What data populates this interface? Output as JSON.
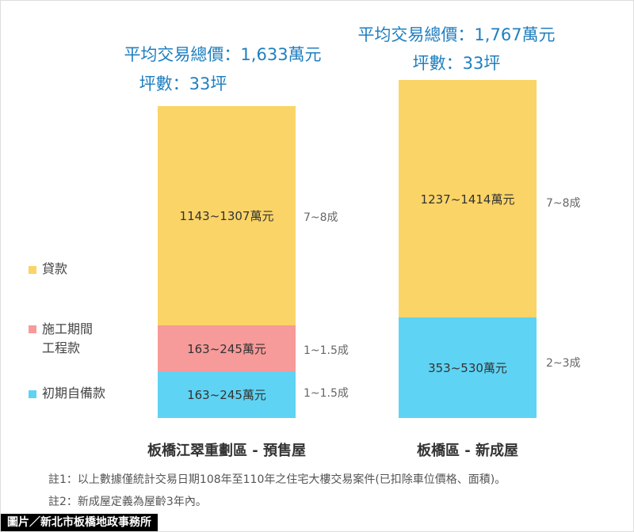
{
  "legend": [
    "貸款",
    "施工期間\n工程款",
    "初期自備款"
  ],
  "columns": [
    {
      "total": "平均交易總價：1,633萬元",
      "area": "坪數：33坪",
      "segments": [
        {
          "label": "1143~1307萬元",
          "share": "7~8成"
        },
        {
          "label": "163~245萬元",
          "share": "1~1.5成"
        },
        {
          "label": "163~245萬元",
          "share": "1~1.5成"
        }
      ],
      "caption": "板橋江翠重劃區 - 預售屋"
    },
    {
      "total": "平均交易總價：1,767萬元",
      "area": "坪數：33坪",
      "segments": [
        {
          "label": "1237~1414萬元",
          "share": "7~8成"
        },
        {
          "label": "353~530萬元",
          "share": "2~3成"
        }
      ],
      "caption": "板橋區 - 新成屋"
    }
  ],
  "notes": [
    "註1：以上數據僅統計交易日期108年至110年之住宅大樓交易案件(已扣除車位價格、面積)。",
    "註2：新成屋定義為屋齡3年內。"
  ],
  "credit": "圖片／新北市板橋地政事務所"
}
